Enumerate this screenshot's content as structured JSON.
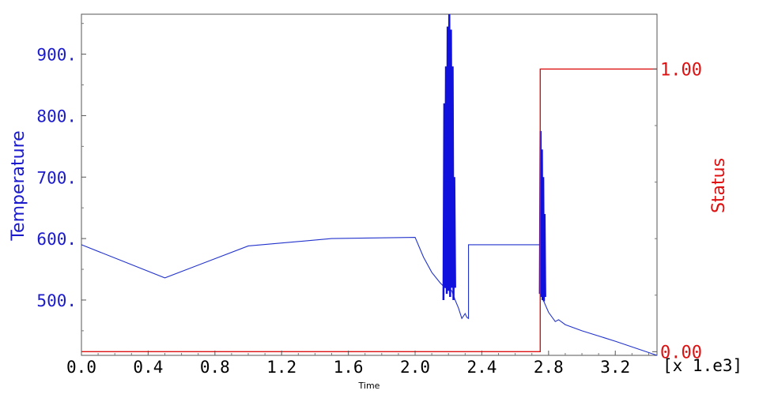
{
  "chart_data": {
    "type": "line",
    "xlabel": "Time",
    "x_multiplier_label": "[x 1.e3]",
    "xlim": [
      0.0,
      3.45
    ],
    "x_ticks": [
      "0.0",
      "0.4",
      "0.8",
      "1.2",
      "1.6",
      "2.0",
      "2.4",
      "2.8",
      "3.2"
    ],
    "x_tick_values": [
      0.0,
      0.4,
      0.8,
      1.2,
      1.6,
      2.0,
      2.4,
      2.8,
      3.2
    ],
    "y_left": {
      "label": "Temperature",
      "ylim": [
        410,
        965
      ],
      "ticks": [
        "500.",
        "600.",
        "700.",
        "800.",
        "900."
      ],
      "tick_values": [
        500,
        600,
        700,
        800,
        900
      ],
      "color": "#1a1acc"
    },
    "y_right": {
      "label": "Status",
      "ylim": [
        -0.013,
        1.194
      ],
      "ticks": [
        "0.00",
        "1.00"
      ],
      "tick_values": [
        0.0,
        1.0
      ],
      "color": "#dd1111"
    },
    "series": [
      {
        "axis": "left",
        "color": "#2233cc",
        "x": [
          0.0,
          0.5,
          1.0,
          1.5,
          2.0,
          2.05,
          2.1,
          2.15,
          2.18,
          2.2,
          2.22,
          2.24,
          2.26,
          2.28,
          2.3,
          2.31,
          2.32,
          2.32,
          2.75,
          2.75,
          2.76,
          2.8,
          2.84,
          2.86,
          2.9,
          3.0,
          3.2,
          3.45
        ],
        "y": [
          590,
          536,
          588,
          600,
          602,
          570,
          545,
          528,
          520,
          520,
          515,
          500,
          487,
          470,
          478,
          472,
          470,
          590,
          590,
          510,
          505,
          480,
          465,
          468,
          460,
          450,
          433,
          410
        ]
      },
      {
        "axis": "left",
        "color": "#1111dd",
        "style": "oscillation",
        "x": [
          2.17,
          2.175,
          2.18,
          2.185,
          2.19,
          2.195,
          2.2,
          2.205,
          2.21,
          2.215,
          2.22,
          2.225,
          2.23,
          2.235,
          2.24
        ],
        "y": [
          500,
          820,
          520,
          880,
          510,
          945,
          515,
          965,
          505,
          940,
          520,
          880,
          500,
          700,
          520
        ]
      },
      {
        "axis": "left",
        "color": "#1111dd",
        "style": "oscillation",
        "x": [
          2.748,
          2.752,
          2.756,
          2.76,
          2.764,
          2.768,
          2.772,
          2.776,
          2.78
        ],
        "y": [
          510,
          775,
          505,
          745,
          500,
          700,
          498,
          640,
          505
        ]
      },
      {
        "axis": "right",
        "color": "#dd1111",
        "x": [
          0.0,
          2.75,
          2.75,
          3.45
        ],
        "y": [
          0.0,
          0.0,
          1.0,
          1.0
        ]
      }
    ]
  }
}
